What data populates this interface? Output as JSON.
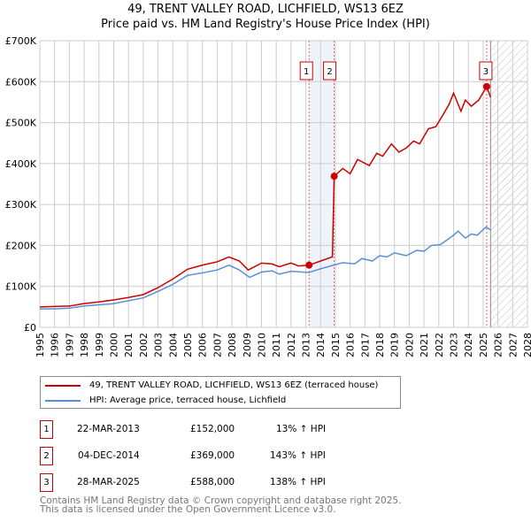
{
  "chart_data": {
    "type": "line",
    "title": "49, TRENT VALLEY ROAD, LICHFIELD, WS13 6EZ",
    "subtitle": "Price paid vs. HM Land Registry's House Price Index (HPI)",
    "xlim": [
      1995,
      2028
    ],
    "ylim": [
      0,
      700000
    ],
    "yticks": [
      0,
      100000,
      200000,
      300000,
      400000,
      500000,
      600000,
      700000
    ],
    "ytick_labels": [
      "£0",
      "£100K",
      "£200K",
      "£300K",
      "£400K",
      "£500K",
      "£600K",
      "£700K"
    ],
    "xticks": [
      1995,
      1996,
      1997,
      1998,
      1999,
      2000,
      2001,
      2002,
      2003,
      2004,
      2005,
      2006,
      2007,
      2008,
      2009,
      2010,
      2011,
      2012,
      2013,
      2014,
      2015,
      2016,
      2017,
      2018,
      2019,
      2020,
      2021,
      2022,
      2023,
      2024,
      2025,
      2026,
      2027,
      2028
    ],
    "grid": true,
    "shaded_band": [
      2013.22,
      2014.92
    ],
    "forecast_hatch_from": 2025.5,
    "series": [
      {
        "name": "49, TRENT VALLEY ROAD, LICHFIELD, WS13 6EZ (terraced house)",
        "color": "#cc0000",
        "x": [
          1995,
          1997,
          1998,
          1999,
          2000,
          2001,
          2002,
          2003,
          2004,
          2005,
          2006,
          2007,
          2007.8,
          2008.5,
          2009.1,
          2010,
          2010.7,
          2011.2,
          2012,
          2012.5,
          2013.22,
          2014,
          2014.8,
          2014.92,
          2015.5,
          2016,
          2016.5,
          2017.3,
          2017.8,
          2018.2,
          2018.8,
          2019.3,
          2019.8,
          2020.3,
          2020.7,
          2021.3,
          2021.8,
          2022.3,
          2022.7,
          2023,
          2023.5,
          2023.8,
          2024.2,
          2024.7,
          2025.24,
          2025.5
        ],
        "y": [
          50000,
          52000,
          58000,
          62000,
          67000,
          73000,
          80000,
          97000,
          118000,
          142000,
          152000,
          160000,
          172000,
          162000,
          140000,
          157000,
          155000,
          148000,
          157000,
          150000,
          152000,
          162000,
          172000,
          369000,
          388000,
          375000,
          410000,
          395000,
          425000,
          418000,
          448000,
          428000,
          438000,
          455000,
          448000,
          485000,
          490000,
          520000,
          545000,
          572000,
          528000,
          555000,
          540000,
          555000,
          588000,
          562000
        ]
      },
      {
        "name": "HPI: Average price, terraced house, Lichfield",
        "color": "#5b8fd4",
        "x": [
          1995,
          1996,
          1997,
          1998,
          1999,
          2000,
          2001,
          2002,
          2003,
          2004,
          2005,
          2006,
          2007,
          2007.8,
          2008.5,
          2009.2,
          2010,
          2010.7,
          2011.2,
          2012,
          2013.2,
          2014,
          2014.9,
          2015.5,
          2016.3,
          2016.8,
          2017.5,
          2018,
          2018.5,
          2019,
          2019.8,
          2020.5,
          2021,
          2021.5,
          2022.1,
          2022.5,
          2023,
          2023.3,
          2023.8,
          2024.2,
          2024.6,
          2025.2,
          2025.5
        ],
        "y": [
          45000,
          45000,
          47000,
          52000,
          55000,
          58000,
          65000,
          72000,
          88000,
          105000,
          127000,
          133000,
          140000,
          152000,
          140000,
          122000,
          135000,
          138000,
          130000,
          137000,
          134000,
          143000,
          152000,
          158000,
          155000,
          168000,
          162000,
          175000,
          172000,
          182000,
          175000,
          188000,
          186000,
          200000,
          202000,
          212000,
          225000,
          235000,
          218000,
          228000,
          225000,
          245000,
          238000
        ]
      }
    ],
    "sales": [
      {
        "label": "1",
        "x": 2013.22,
        "y": 152000,
        "date": "22-MAR-2013",
        "price": "£152,000",
        "hpi": "13% ↑ HPI"
      },
      {
        "label": "2",
        "x": 2014.92,
        "y": 369000,
        "date": "04-DEC-2014",
        "price": "£369,000",
        "hpi": "143% ↑ HPI"
      },
      {
        "label": "3",
        "x": 2025.24,
        "y": 588000,
        "date": "28-MAR-2025",
        "price": "£588,000",
        "hpi": "138% ↑ HPI"
      }
    ]
  },
  "footer": {
    "line1": "Contains HM Land Registry data © Crown copyright and database right 2025.",
    "line2": "This data is licensed under the Open Government Licence v3.0."
  }
}
